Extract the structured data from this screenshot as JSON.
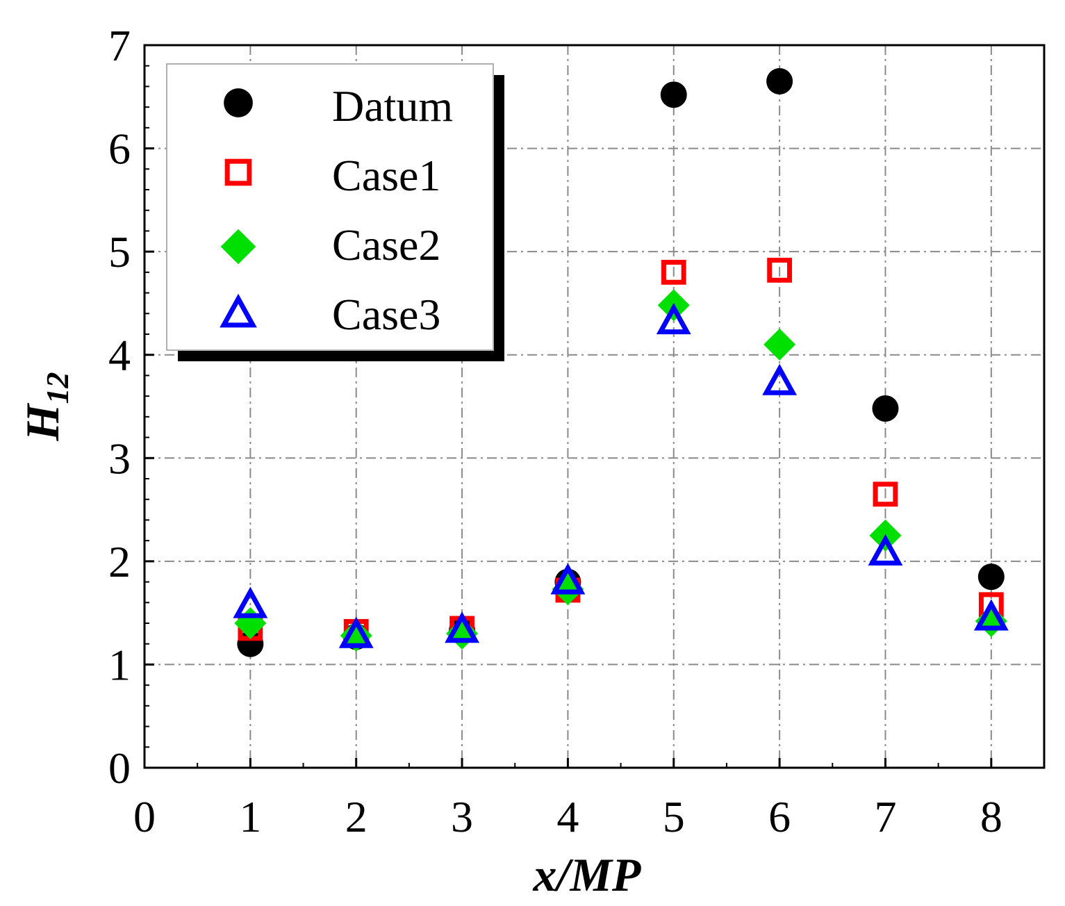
{
  "chart_data": {
    "type": "scatter",
    "xlabel": "x/MP",
    "ylabel_main": "H",
    "ylabel_sub": "12",
    "xlim": [
      0,
      8.5
    ],
    "ylim": [
      0,
      7
    ],
    "xticks": [
      0,
      1,
      2,
      3,
      4,
      5,
      6,
      7,
      8
    ],
    "yticks": [
      0,
      1,
      2,
      3,
      4,
      5,
      6,
      7
    ],
    "grid": true,
    "legend_position": "top-left",
    "series": [
      {
        "name": "Datum",
        "marker": "circle",
        "color": "#000000",
        "filled": true,
        "x": [
          1,
          2,
          3,
          4,
          5,
          6,
          7,
          8
        ],
        "y": [
          1.2,
          1.27,
          1.33,
          1.8,
          6.52,
          6.65,
          3.48,
          1.85
        ]
      },
      {
        "name": "Case1",
        "marker": "square",
        "color": "#ff0000",
        "filled": false,
        "x": [
          1,
          2,
          3,
          4,
          5,
          6,
          7,
          8
        ],
        "y": [
          1.35,
          1.32,
          1.35,
          1.72,
          4.8,
          4.82,
          2.65,
          1.58
        ]
      },
      {
        "name": "Case2",
        "marker": "diamond",
        "color": "#00e000",
        "filled": true,
        "x": [
          1,
          2,
          3,
          4,
          5,
          6,
          7,
          8
        ],
        "y": [
          1.4,
          1.28,
          1.3,
          1.73,
          4.48,
          4.1,
          2.25,
          1.42
        ]
      },
      {
        "name": "Case3",
        "marker": "triangle",
        "color": "#0000ff",
        "filled": false,
        "x": [
          1,
          2,
          3,
          4,
          5,
          6,
          7,
          8
        ],
        "y": [
          1.57,
          1.28,
          1.33,
          1.8,
          4.32,
          3.73,
          2.08,
          1.45
        ]
      }
    ]
  }
}
